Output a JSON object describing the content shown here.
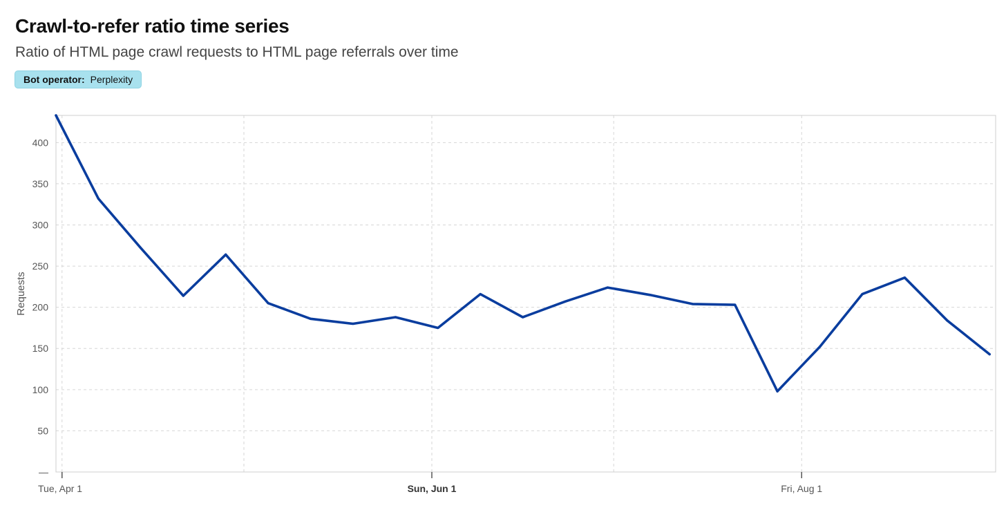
{
  "header": {
    "title": "Crawl-to-refer ratio time series",
    "subtitle": "Ratio of HTML page crawl requests to HTML page referrals over time"
  },
  "filter_badge": {
    "key": "Bot operator:",
    "value": "Perplexity"
  },
  "chart_data": {
    "type": "line",
    "title": "Crawl-to-refer ratio time series",
    "subtitle": "Ratio of HTML page crawl requests to HTML page referrals over time",
    "xlabel": "",
    "ylabel": "Requests",
    "x": [
      "2025-03-31",
      "2025-04-07",
      "2025-04-14",
      "2025-04-21",
      "2025-04-28",
      "2025-05-05",
      "2025-05-12",
      "2025-05-19",
      "2025-05-26",
      "2025-06-02",
      "2025-06-09",
      "2025-06-16",
      "2025-06-23",
      "2025-06-30",
      "2025-07-07",
      "2025-07-14",
      "2025-07-21",
      "2025-07-28",
      "2025-08-04",
      "2025-08-11",
      "2025-08-18",
      "2025-08-25",
      "2025-09-01"
    ],
    "series": [
      {
        "values": [
          433,
          332,
          272,
          214,
          264,
          205,
          186,
          180,
          188,
          175,
          216,
          188,
          207,
          224,
          215,
          204,
          203,
          98,
          152,
          216,
          236,
          184,
          143
        ],
        "color": "#0a3d9e"
      }
    ],
    "xlim": [
      "2025-03-31",
      "2025-09-02"
    ],
    "ylim": [
      0,
      433
    ],
    "yticks": [
      0,
      50,
      100,
      150,
      200,
      250,
      300,
      350,
      400
    ],
    "ytick_labels": [
      "—",
      "50",
      "100",
      "150",
      "200",
      "250",
      "300",
      "350",
      "400"
    ],
    "xticks": [
      {
        "date": "2025-04-01",
        "label": "Tue, Apr 1",
        "bold": false
      },
      {
        "date": "2025-06-01",
        "label": "Sun, Jun 1",
        "bold": true
      },
      {
        "date": "2025-08-01",
        "label": "Fri, Aug 1",
        "bold": false
      }
    ],
    "x_grid_dates": [
      "2025-04-01",
      "2025-05-01",
      "2025-06-01",
      "2025-07-01",
      "2025-08-01"
    ],
    "grid": true,
    "legend": "none"
  }
}
